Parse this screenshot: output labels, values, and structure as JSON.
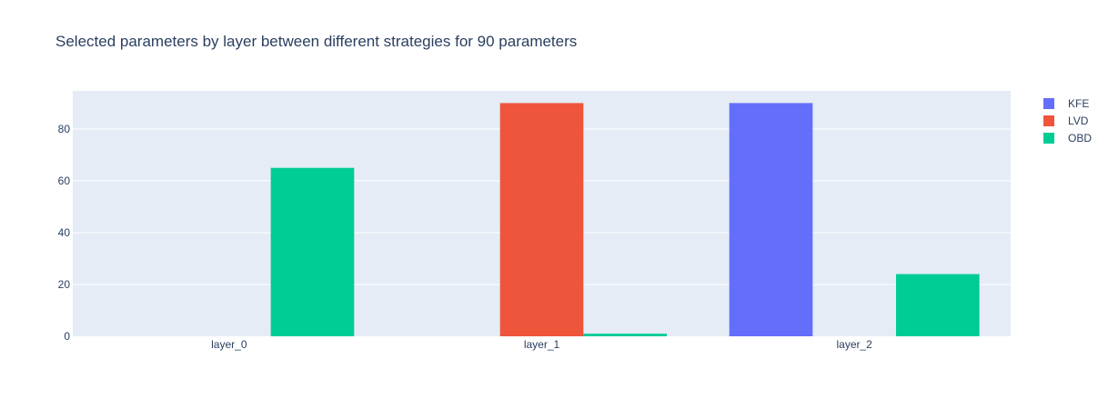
{
  "chart_data": {
    "type": "bar",
    "title": "Selected parameters by layer between different strategies for 90 parameters",
    "xlabel": "",
    "ylabel": "",
    "categories": [
      "layer_0",
      "layer_1",
      "layer_2"
    ],
    "series": [
      {
        "name": "KFE",
        "color": "#636efa",
        "values": [
          0,
          0,
          90
        ]
      },
      {
        "name": "LVD",
        "color": "#ef553b",
        "values": [
          0,
          90,
          0
        ]
      },
      {
        "name": "OBD",
        "color": "#00cc96",
        "values": [
          65,
          1,
          24
        ]
      }
    ],
    "ylim": [
      0,
      94.7
    ],
    "yticks": [
      0,
      20,
      40,
      60,
      80
    ],
    "grid": true,
    "legend": "top-right",
    "plot_background": "#e5ecf6"
  }
}
